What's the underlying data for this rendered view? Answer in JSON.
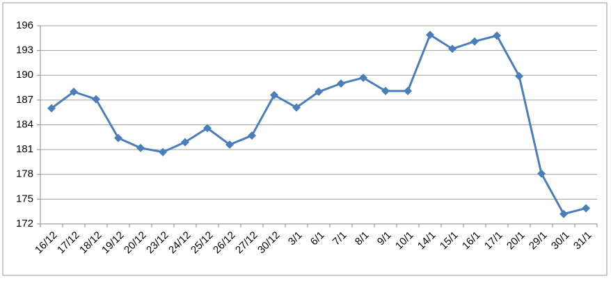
{
  "chart_data": {
    "type": "line",
    "categories": [
      "16/12",
      "17/12",
      "18/12",
      "19/12",
      "20/12",
      "23/12",
      "24/12",
      "25/12",
      "26/12",
      "27/12",
      "30/12",
      "3/1",
      "6/1",
      "7/1",
      "8/1",
      "9/1",
      "10/1",
      "14/1",
      "15/1",
      "16/1",
      "17/1",
      "20/1",
      "29/1",
      "30/1",
      "31/1"
    ],
    "series": [
      {
        "color": "#4a7ebb",
        "values": [
          186.0,
          188.0,
          187.1,
          182.4,
          181.2,
          180.7,
          181.9,
          183.6,
          181.6,
          182.7,
          187.6,
          186.1,
          188.0,
          189.0,
          189.7,
          188.1,
          188.1,
          194.9,
          193.2,
          194.1,
          194.8,
          189.9,
          178.1,
          173.2,
          173.9
        ]
      }
    ],
    "ylim": [
      172,
      196
    ],
    "yticks": [
      172,
      175,
      178,
      181,
      184,
      187,
      190,
      193,
      196
    ],
    "grid": true
  }
}
